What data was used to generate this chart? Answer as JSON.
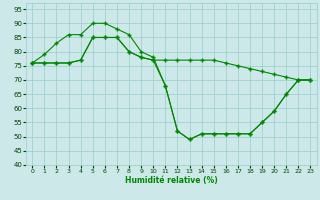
{
  "xlabel": "Humidité relative (%)",
  "bg_color": "#cce8e8",
  "grid_color": "#99cccc",
  "line_color": "#008800",
  "xlim": [
    -0.5,
    23.5
  ],
  "ylim": [
    40,
    97
  ],
  "yticks": [
    40,
    45,
    50,
    55,
    60,
    65,
    70,
    75,
    80,
    85,
    90,
    95
  ],
  "xticks": [
    0,
    1,
    2,
    3,
    4,
    5,
    6,
    7,
    8,
    9,
    10,
    11,
    12,
    13,
    14,
    15,
    16,
    17,
    18,
    19,
    20,
    21,
    22,
    23
  ],
  "line1": {
    "x": [
      0,
      1,
      2,
      3,
      4,
      5,
      6,
      7,
      8,
      9,
      10,
      11,
      12,
      13,
      14,
      15,
      16,
      17,
      18,
      19,
      20,
      21,
      22,
      23
    ],
    "y": [
      76,
      79,
      83,
      86,
      86,
      90,
      90,
      88,
      86,
      80,
      78,
      68,
      52,
      49,
      51,
      51,
      51,
      51,
      51,
      55,
      59,
      65,
      70,
      70
    ]
  },
  "line2": {
    "x": [
      0,
      1,
      2,
      3,
      4,
      5,
      6,
      7,
      8,
      9,
      10,
      11,
      12,
      13,
      14,
      15,
      16,
      17,
      18,
      19,
      20,
      21,
      22,
      23
    ],
    "y": [
      76,
      76,
      76,
      76,
      77,
      85,
      85,
      85,
      80,
      78,
      77,
      68,
      52,
      49,
      51,
      51,
      51,
      51,
      51,
      55,
      59,
      65,
      70,
      70
    ]
  },
  "line3": {
    "x": [
      0,
      1,
      2,
      3,
      4,
      5,
      6,
      7,
      8,
      9,
      10,
      11,
      12,
      13,
      14,
      15,
      16,
      17,
      18,
      19,
      20,
      21,
      22,
      23
    ],
    "y": [
      76,
      76,
      76,
      76,
      77,
      85,
      85,
      85,
      80,
      78,
      77,
      77,
      77,
      77,
      77,
      77,
      76,
      75,
      74,
      73,
      72,
      71,
      70,
      70
    ]
  }
}
